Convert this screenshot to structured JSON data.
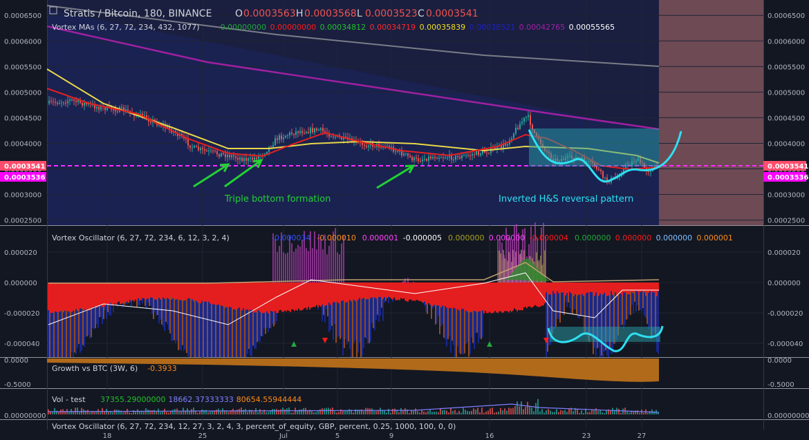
{
  "header": {
    "symbol": "Stratis / Bitcoin, 180, BINANCE",
    "o_label": "O",
    "o_value": "0.0003563",
    "h_label": "H",
    "h_value": "0.0003568",
    "l_label": "L",
    "l_value": "0.0003523",
    "c_label": "C",
    "c_value": "0.0003541"
  },
  "colors": {
    "bg": "#131722",
    "panel_bg": "#1a1f40",
    "grid": "#1e2433",
    "up": "#26a69a",
    "down": "#ef5350",
    "text": "#b2b5be",
    "accent_green": "#22d133",
    "accent_cyan": "#2ee0f0",
    "magenta": "#a020a0",
    "yellow": "#e8d84a",
    "red": "#ff1a1a",
    "future_zone": "#6e4a55",
    "price_tag": "#ff4d6d",
    "ma_tag": "#ff00ff"
  },
  "panels": [
    {
      "id": "price",
      "indicator": "Vortex MAs (6, 27, 72, 234, 432, 1077)",
      "values": [
        {
          "text": "0.00000000",
          "color": "#22a83a"
        },
        {
          "text": "0.00000000",
          "color": "#ff1a1a"
        },
        {
          "text": "0.00034812",
          "color": "#22c02a"
        },
        {
          "text": "0.00034719",
          "color": "#ff2a2a"
        },
        {
          "text": "0.00035839",
          "color": "#f0e020"
        },
        {
          "text": "0.00038521",
          "color": "#2020c0"
        },
        {
          "text": "0.00042765",
          "color": "#a020a0"
        },
        {
          "text": "0.00055565",
          "color": "#ffffff"
        }
      ],
      "yticks": [
        "0.0006500",
        "0.0006000",
        "0.0005500",
        "0.0005000",
        "0.0004500",
        "0.0004000",
        "0.0003500",
        "0.0003000",
        "0.0002500"
      ],
      "ylim": [
        0.00024,
        0.00068
      ],
      "price_tag": "0.0003541",
      "ma_tag": "0.0003536"
    },
    {
      "id": "osc",
      "indicator": "Vortex Oscillator (6, 27, 72, 234, 6, 12, 3, 2, 4)",
      "values": [
        {
          "text": "-0.000034",
          "color": "#3050ff"
        },
        {
          "text": "-0.000010",
          "color": "#ff8c1a"
        },
        {
          "text": "0.000001",
          "color": "#ff40ff"
        },
        {
          "text": "-0.000005",
          "color": "#ffffff"
        },
        {
          "text": "0.000000",
          "color": "#a8a020"
        },
        {
          "text": "0.000000",
          "color": "#ff40ff"
        },
        {
          "text": "-0.000004",
          "color": "#ff1a1a"
        },
        {
          "text": "0.000000",
          "color": "#22a83a"
        },
        {
          "text": "0.000000",
          "color": "#ff1a1a"
        },
        {
          "text": "0.000000",
          "color": "#80c0ff"
        },
        {
          "text": "0.000001",
          "color": "#ff8c1a"
        }
      ],
      "yticks": [
        "0.000020",
        "0.000000",
        "-0.000020",
        "-0.000040"
      ]
    },
    {
      "id": "growth",
      "indicator": "Growth vs BTC (3W, 6)",
      "values": [
        {
          "text": "-0.3933",
          "color": "#ff8c1a"
        }
      ],
      "yticks": [
        "0.0000",
        "-0.5000"
      ]
    },
    {
      "id": "vol",
      "indicator": "Vol - test",
      "values": [
        {
          "text": "37355.29000000",
          "color": "#22c02a"
        },
        {
          "text": "18662.37333333",
          "color": "#8080ff"
        },
        {
          "text": "80654.55944444",
          "color": "#ff8c1a"
        }
      ],
      "yticks": [
        "0.00000000"
      ]
    },
    {
      "id": "bt",
      "indicator": "Vortex Oscillator (6, 27, 72, 234, 12, 27, 3, 2, 4, 3, percent_of_equity, GBP, percent, 0.25, 1000, 100, 0, 0)",
      "values": [],
      "yticks": []
    }
  ],
  "annotations": {
    "triple_bottom": "Triple bottom formation",
    "inverted_hs": "Inverted H&S reversal pattern"
  },
  "xaxis": [
    "18",
    "25",
    "Jul",
    "5",
    "9",
    "16",
    "23",
    "27"
  ],
  "chart_data": {
    "type": "line",
    "title": "Stratis / Bitcoin, 180, BINANCE",
    "xlabel": "",
    "ylabel": "",
    "x": [
      "18",
      "25",
      "Jul",
      "5",
      "9",
      "16",
      "23",
      "27"
    ],
    "ylim": [
      0.00024,
      0.00068
    ],
    "series": [
      {
        "name": "close",
        "values": [
          0.000455,
          0.000375,
          0.000385,
          0.00042,
          0.00036,
          0.0004,
          0.00033,
          0.0003541
        ]
      }
    ],
    "grid": true,
    "legend": "top-left"
  }
}
